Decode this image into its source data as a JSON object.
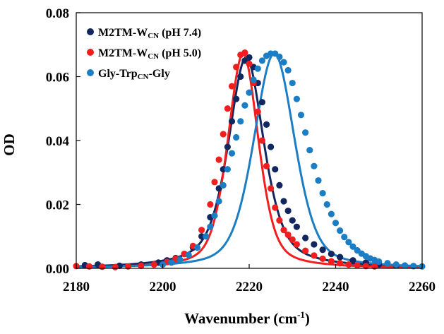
{
  "chart_data": {
    "type": "scatter",
    "title": "",
    "xlabel": "Wavenumber (cm-1)",
    "xlabel_parts": {
      "main": "Wavenumber (cm",
      "sup": "-1",
      "end": ")"
    },
    "ylabel": "OD",
    "xlim": [
      2180,
      2260
    ],
    "ylim": [
      0,
      0.08
    ],
    "xticks": [
      2180,
      2200,
      2220,
      2240,
      2260
    ],
    "yticks": [
      0.0,
      0.02,
      0.04,
      0.06,
      0.08
    ],
    "xtick_labels": [
      "2180",
      "2200",
      "2220",
      "2240",
      "2260"
    ],
    "ytick_labels": [
      "0.00",
      "0.02",
      "0.04",
      "0.06",
      "0.08"
    ],
    "grid": false,
    "legend_position": "top-left",
    "series": [
      {
        "name": "M2TM-WCN (pH 7.4)",
        "label_parts": {
          "pre": "M2TM-W",
          "sub": "CN",
          "post": " (pH 7.4)"
        },
        "color": "#12275f",
        "peak": {
          "center": 2219.3,
          "height": 0.066,
          "hwhm": 4.9,
          "eta": 0.6
        },
        "points": [
          [
            2182,
            0.001
          ],
          [
            2185,
            0.0012
          ],
          [
            2190,
            0.0008
          ],
          [
            2195,
            0.0012
          ],
          [
            2199,
            0.0018
          ],
          [
            2201,
            0.0025
          ],
          [
            2203,
            0.0032
          ],
          [
            2205,
            0.0045
          ],
          [
            2207,
            0.0065
          ],
          [
            2209,
            0.01
          ],
          [
            2211,
            0.016
          ],
          [
            2213,
            0.025
          ],
          [
            2214,
            0.031
          ],
          [
            2215,
            0.038
          ],
          [
            2216,
            0.046
          ],
          [
            2217,
            0.053
          ],
          [
            2218,
            0.06
          ],
          [
            2219,
            0.065
          ],
          [
            2220,
            0.066
          ],
          [
            2221,
            0.063
          ],
          [
            2222,
            0.058
          ],
          [
            2223,
            0.052
          ],
          [
            2224,
            0.045
          ],
          [
            2225,
            0.038
          ],
          [
            2226,
            0.031
          ],
          [
            2227,
            0.026
          ],
          [
            2228,
            0.021
          ],
          [
            2229,
            0.018
          ],
          [
            2230,
            0.015
          ],
          [
            2231,
            0.013
          ],
          [
            2233,
            0.0095
          ],
          [
            2235,
            0.0075
          ],
          [
            2237,
            0.0058
          ],
          [
            2239,
            0.0045
          ],
          [
            2241,
            0.0035
          ],
          [
            2244,
            0.0025
          ],
          [
            2247,
            0.0018
          ],
          [
            2250,
            0.0012
          ],
          [
            2254,
            0.0009
          ],
          [
            2258,
            0.0007
          ]
        ]
      },
      {
        "name": "M2TM-WCN (pH 5.0)",
        "label_parts": {
          "pre": "M2TM-W",
          "sub": "CN",
          "post": " (pH 5.0)"
        },
        "color": "#f01e1e",
        "peak": {
          "center": 2218.6,
          "height": 0.0672,
          "hwhm": 4.2,
          "eta": 0.45
        },
        "points": [
          [
            2180,
            0.0007
          ],
          [
            2183,
            0.0006
          ],
          [
            2186,
            0.0005
          ],
          [
            2189,
            0.0004
          ],
          [
            2192,
            0.0006
          ],
          [
            2195,
            0.0008
          ],
          [
            2198,
            0.0012
          ],
          [
            2201,
            0.002
          ],
          [
            2203,
            0.003
          ],
          [
            2205,
            0.0045
          ],
          [
            2207,
            0.007
          ],
          [
            2209,
            0.012
          ],
          [
            2211,
            0.02
          ],
          [
            2212,
            0.027
          ],
          [
            2213,
            0.034
          ],
          [
            2214,
            0.042
          ],
          [
            2215,
            0.05
          ],
          [
            2216,
            0.057
          ],
          [
            2217,
            0.063
          ],
          [
            2218,
            0.0668
          ],
          [
            2219,
            0.0675
          ],
          [
            2220,
            0.064
          ],
          [
            2221,
            0.058
          ],
          [
            2222,
            0.049
          ],
          [
            2223,
            0.04
          ],
          [
            2224,
            0.032
          ],
          [
            2225,
            0.025
          ],
          [
            2226,
            0.019
          ],
          [
            2227,
            0.015
          ],
          [
            2228,
            0.012
          ],
          [
            2229,
            0.0105
          ],
          [
            2230,
            0.009
          ],
          [
            2231,
            0.0075
          ],
          [
            2233,
            0.0055
          ],
          [
            2235,
            0.004
          ],
          [
            2237,
            0.003
          ],
          [
            2239,
            0.0022
          ],
          [
            2241,
            0.0016
          ],
          [
            2243,
            0.0012
          ],
          [
            2245,
            0.0009
          ],
          [
            2247,
            0.0007
          ],
          [
            2249,
            0.0006
          ]
        ]
      },
      {
        "name": "Gly-TrpCN-Gly",
        "label_parts": {
          "pre": "Gly-Trp",
          "sub": "CN",
          "post": "-Gly"
        },
        "color": "#1b7ec4",
        "peak": {
          "center": 2225.8,
          "height": 0.0672,
          "hwhm": 5.6,
          "eta": 0.4
        },
        "points": [
          [
            2200,
            0.0012
          ],
          [
            2202,
            0.0018
          ],
          [
            2204,
            0.0027
          ],
          [
            2206,
            0.0042
          ],
          [
            2208,
            0.0065
          ],
          [
            2210,
            0.01
          ],
          [
            2211,
            0.013
          ],
          [
            2212,
            0.0165
          ],
          [
            2213,
            0.021
          ],
          [
            2214,
            0.026
          ],
          [
            2215,
            0.031
          ],
          [
            2216,
            0.036
          ],
          [
            2217,
            0.041
          ],
          [
            2218,
            0.046
          ],
          [
            2219,
            0.051
          ],
          [
            2220,
            0.055
          ],
          [
            2221,
            0.059
          ],
          [
            2222,
            0.0625
          ],
          [
            2223,
            0.065
          ],
          [
            2224,
            0.0665
          ],
          [
            2225,
            0.0672
          ],
          [
            2226,
            0.0672
          ],
          [
            2227,
            0.0662
          ],
          [
            2228,
            0.0645
          ],
          [
            2229,
            0.062
          ],
          [
            2230,
            0.058
          ],
          [
            2231,
            0.053
          ],
          [
            2232,
            0.048
          ],
          [
            2233,
            0.0425
          ],
          [
            2234,
            0.037
          ],
          [
            2235,
            0.032
          ],
          [
            2236,
            0.0275
          ],
          [
            2237,
            0.0235
          ],
          [
            2238,
            0.02
          ],
          [
            2239,
            0.017
          ],
          [
            2240,
            0.0142
          ],
          [
            2241,
            0.0118
          ],
          [
            2242,
            0.0098
          ],
          [
            2243,
            0.0082
          ],
          [
            2244,
            0.0068
          ],
          [
            2245,
            0.0056
          ],
          [
            2246,
            0.0046
          ],
          [
            2247,
            0.0038
          ],
          [
            2248,
            0.0031
          ],
          [
            2249,
            0.0026
          ],
          [
            2250,
            0.0021
          ],
          [
            2252,
            0.0016
          ],
          [
            2254,
            0.0012
          ],
          [
            2256,
            0.0009
          ],
          [
            2258,
            0.0007
          ],
          [
            2260,
            0.0006
          ]
        ]
      }
    ]
  }
}
